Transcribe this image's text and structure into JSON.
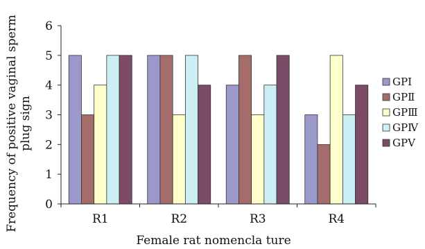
{
  "chart_data": {
    "type": "bar",
    "title": "",
    "xlabel": "Female rat nomencla ture",
    "ylabel": "Frequency of positive vaginal sperm plug sign",
    "ylabel_lines": [
      "Frequency of positive vaginal sperm",
      "plug sign"
    ],
    "categories": [
      "R1",
      "R2",
      "R3",
      "R4"
    ],
    "ylim": [
      0,
      6
    ],
    "yticks": [
      0,
      1,
      2,
      3,
      4,
      5,
      6
    ],
    "grid": false,
    "legend_position": "right",
    "series": [
      {
        "name": "GPⅠ",
        "color": "#9a99c9",
        "values": [
          5,
          5,
          4,
          3
        ]
      },
      {
        "name": "GPⅡ",
        "color": "#a46d6c",
        "values": [
          3,
          5,
          5,
          2
        ]
      },
      {
        "name": "GPⅢ",
        "color": "#ffffcc",
        "values": [
          4,
          3,
          3,
          5
        ]
      },
      {
        "name": "GPⅣ",
        "color": "#cceff5",
        "values": [
          5,
          5,
          4,
          3
        ]
      },
      {
        "name": "GPⅤ",
        "color": "#7b4b67",
        "values": [
          5,
          4,
          5,
          4
        ]
      }
    ]
  }
}
